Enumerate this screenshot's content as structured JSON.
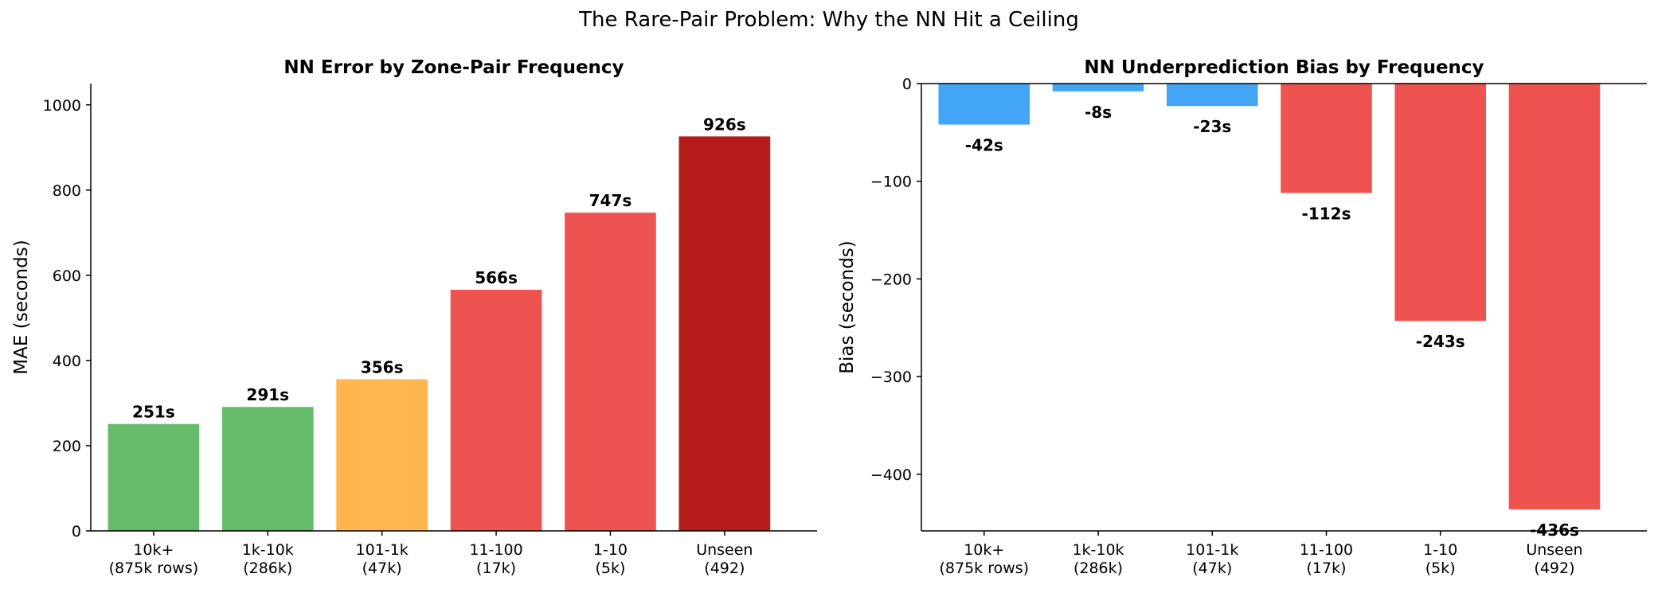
{
  "suptitle": "The Rare-Pair Problem: Why the NN Hit a Ceiling",
  "chart_data": [
    {
      "type": "bar",
      "title": "NN Error by Zone-Pair Frequency",
      "xlabel": "",
      "ylabel": "MAE (seconds)",
      "ylim": [
        0,
        1050
      ],
      "yticks": [
        0,
        200,
        400,
        600,
        800,
        1000
      ],
      "categories": [
        [
          "10k+",
          "(875k rows)"
        ],
        [
          "1k-10k",
          "(286k)"
        ],
        [
          "101-1k",
          "(47k)"
        ],
        [
          "11-100",
          "(17k)"
        ],
        [
          "1-10",
          "(5k)"
        ],
        [
          "Unseen",
          "(492)"
        ]
      ],
      "values": [
        251,
        291,
        356,
        566,
        747,
        926
      ],
      "data_labels": [
        "251s",
        "291s",
        "356s",
        "566s",
        "747s",
        "926s"
      ],
      "colors": [
        "#66bb6a",
        "#66bb6a",
        "#ffb74d",
        "#ef5350",
        "#ef5350",
        "#b71c1c"
      ],
      "grid": false
    },
    {
      "type": "bar",
      "title": "NN Underprediction Bias by Frequency",
      "xlabel": "",
      "ylabel": "Bias (seconds)",
      "ylim": [
        -458,
        0
      ],
      "yticks": [
        0,
        -100,
        -200,
        -300,
        -400
      ],
      "ytick_labels": [
        "0",
        "−100",
        "−200",
        "−300",
        "−400"
      ],
      "categories": [
        [
          "10k+",
          "(875k rows)"
        ],
        [
          "1k-10k",
          "(286k)"
        ],
        [
          "101-1k",
          "(47k)"
        ],
        [
          "11-100",
          "(17k)"
        ],
        [
          "1-10",
          "(5k)"
        ],
        [
          "Unseen",
          "(492)"
        ]
      ],
      "values": [
        -42,
        -8,
        -23,
        -112,
        -243,
        -436
      ],
      "data_labels": [
        "-42s",
        "-8s",
        "-23s",
        "-112s",
        "-243s",
        "-436s"
      ],
      "colors": [
        "#42a5f5",
        "#42a5f5",
        "#42a5f5",
        "#ef5350",
        "#ef5350",
        "#ef5350"
      ],
      "grid": false
    }
  ]
}
